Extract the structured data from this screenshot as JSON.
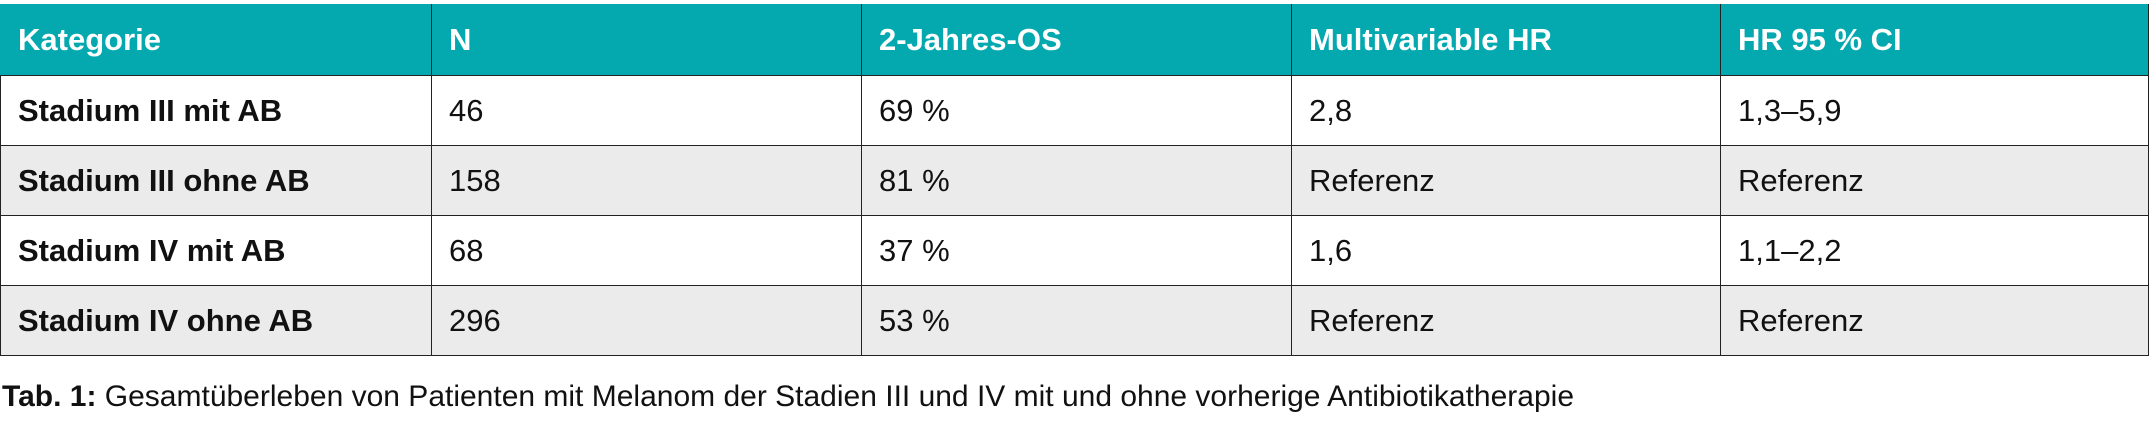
{
  "colors": {
    "header_bg": "#04a9b0",
    "header_text": "#ffffff",
    "row_alt_bg": "#ebebeb",
    "border": "#222222"
  },
  "table": {
    "headers": [
      "Kategorie",
      "N",
      "2-Jahres-OS",
      "Multivariable HR",
      "HR 95 % CI"
    ],
    "rows": [
      [
        "Stadium III mit AB",
        "46",
        "69 %",
        "2,8",
        "1,3–5,9"
      ],
      [
        "Stadium III ohne AB",
        "158",
        "81 %",
        "Referenz",
        "Referenz"
      ],
      [
        "Stadium IV mit AB",
        "68",
        "37 %",
        "1,6",
        "1,1–2,2"
      ],
      [
        "Stadium IV ohne AB",
        "296",
        "53 %",
        "Referenz",
        "Referenz"
      ]
    ]
  },
  "caption": {
    "label": "Tab. 1:",
    "text": " Gesamtüberleben von Patienten mit Melanom der Stadien III und IV mit und ohne vorherige Antibiotikatherapie"
  }
}
